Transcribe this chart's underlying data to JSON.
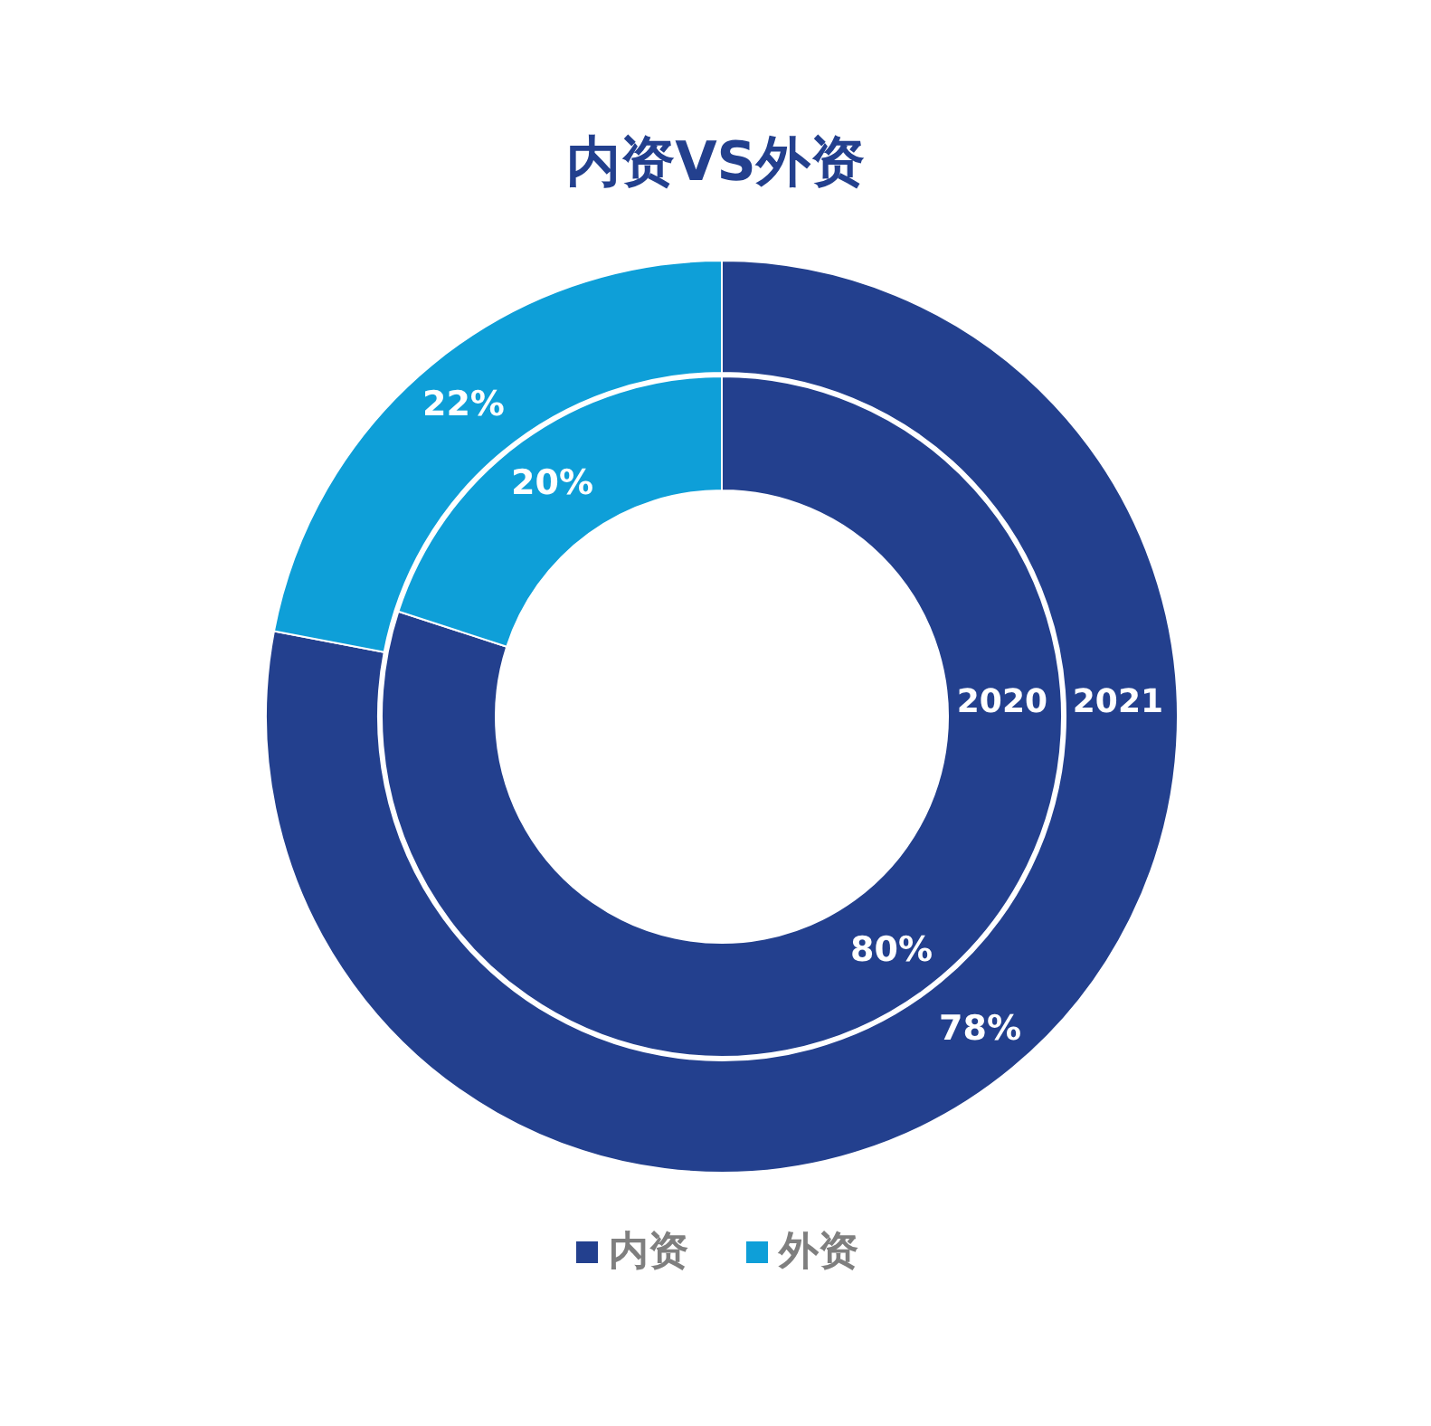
{
  "chart_data": {
    "type": "donut",
    "title": "内资VS外资",
    "categories": [
      "内资",
      "外资"
    ],
    "colors": [
      "#23408e",
      "#0e9fd8"
    ],
    "legend": "bottom",
    "series": [
      {
        "name": "2020",
        "values": [
          80,
          20
        ],
        "value_labels": [
          "80%",
          "20%"
        ]
      },
      {
        "name": "2021",
        "values": [
          78,
          22
        ],
        "value_labels": [
          "78%",
          "22%"
        ]
      }
    ]
  }
}
